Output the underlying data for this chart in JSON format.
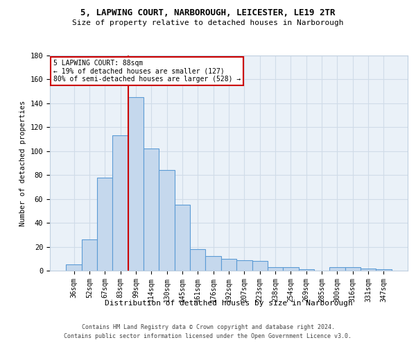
{
  "title1": "5, LAPWING COURT, NARBOROUGH, LEICESTER, LE19 2TR",
  "title2": "Size of property relative to detached houses in Narborough",
  "xlabel": "Distribution of detached houses by size in Narborough",
  "ylabel": "Number of detached properties",
  "categories": [
    "36sqm",
    "52sqm",
    "67sqm",
    "83sqm",
    "99sqm",
    "114sqm",
    "130sqm",
    "145sqm",
    "161sqm",
    "176sqm",
    "192sqm",
    "207sqm",
    "223sqm",
    "238sqm",
    "254sqm",
    "269sqm",
    "285sqm",
    "300sqm",
    "316sqm",
    "331sqm",
    "347sqm"
  ],
  "values": [
    5,
    26,
    78,
    113,
    145,
    102,
    84,
    55,
    18,
    12,
    10,
    9,
    8,
    3,
    3,
    1,
    0,
    3,
    3,
    2,
    1
  ],
  "bar_color": "#c5d8ed",
  "bar_edge_color": "#5b9bd5",
  "property_label": "5 LAPWING COURT: 88sqm",
  "pct_smaller": "19% of detached houses are smaller (127)",
  "pct_larger": "80% of semi-detached houses are larger (528)",
  "annotation_border_color": "#cc0000",
  "vline_color": "#cc0000",
  "ylim": [
    0,
    180
  ],
  "yticks": [
    0,
    20,
    40,
    60,
    80,
    100,
    120,
    140,
    160,
    180
  ],
  "grid_color": "#d0dce8",
  "background_color": "#eaf1f8",
  "footer1": "Contains HM Land Registry data © Crown copyright and database right 2024.",
  "footer2": "Contains public sector information licensed under the Open Government Licence v3.0."
}
